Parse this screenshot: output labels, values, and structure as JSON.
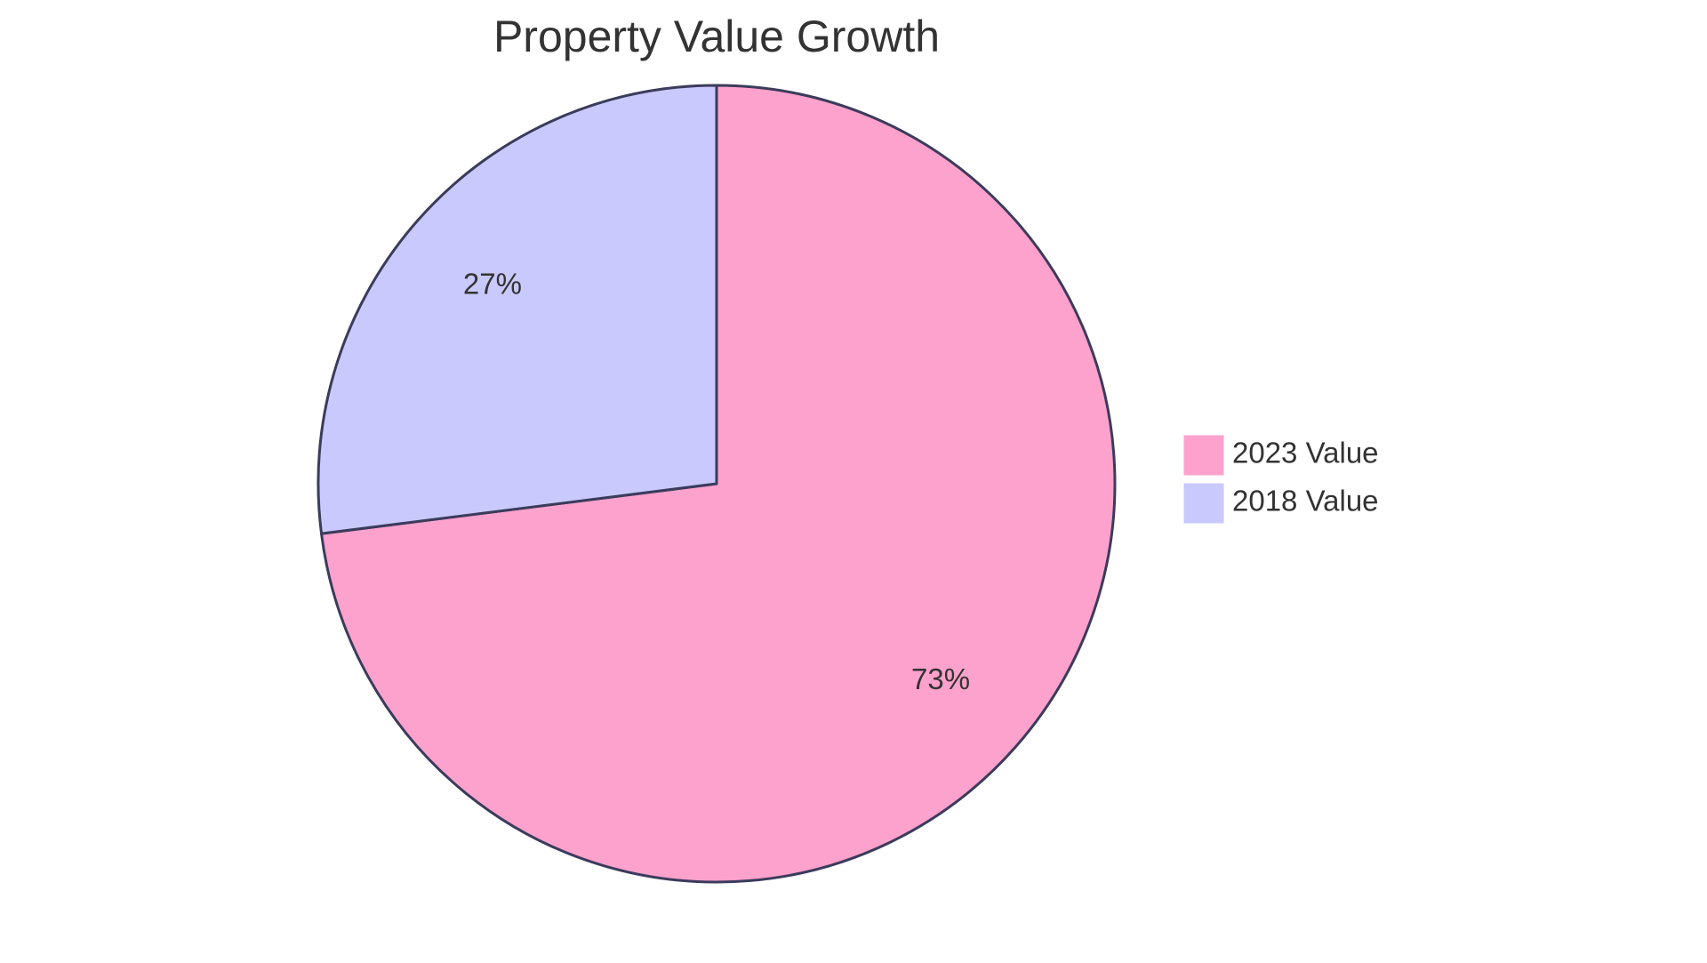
{
  "chart_data": {
    "type": "pie",
    "title": "Property Value Growth",
    "slices": [
      {
        "label": "2023 Value",
        "percent": 73,
        "display": "73%",
        "color": "#fda2cc"
      },
      {
        "label": "2018 Value",
        "percent": 27,
        "display": "27%",
        "color": "#c9c9fd"
      }
    ],
    "legend_position": "right",
    "outline_color": "#3b3b5c"
  }
}
